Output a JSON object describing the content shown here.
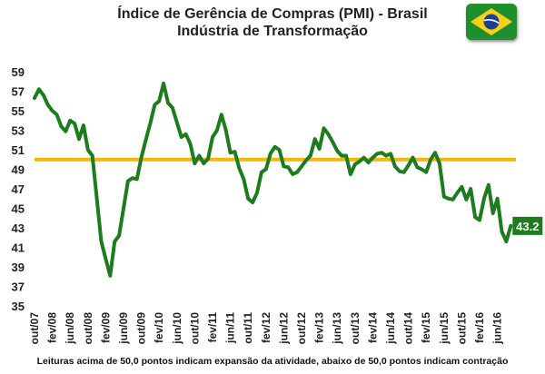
{
  "title_line1": "Índice de Gerência de Compras (PMI) - Brasil",
  "title_line2": "Indústria de Transformação",
  "footnote": "Leituras acima de 50,0 pontos indicam expansão da atividade, abaixo de 50,0 pontos indicam contração",
  "flag_icon": "brazil-flag-icon",
  "colors": {
    "line": "#1e7b1e",
    "threshold": "#f5b800",
    "label_bg": "#1e7b1e"
  },
  "chart_data": {
    "type": "line",
    "title": "Índice de Gerência de Compras (PMI) - Brasil",
    "subtitle": "Indústria de Transformação",
    "xlabel": "",
    "ylabel": "",
    "ylim": [
      35,
      59
    ],
    "yticks": [
      35,
      37,
      39,
      41,
      43,
      45,
      47,
      49,
      51,
      53,
      55,
      57,
      59
    ],
    "xtick_labels": [
      "out/07",
      "fev/08",
      "jun/08",
      "out/08",
      "fev/09",
      "jun/09",
      "out/09",
      "fev/10",
      "jun/10",
      "out/10",
      "fev/11",
      "jun/11",
      "out/11",
      "fev/12",
      "jun/12",
      "out/12",
      "fev/13",
      "jun/13",
      "out/13",
      "fev/14",
      "jun/14",
      "out/14",
      "fev/15",
      "jun/15",
      "out/15",
      "fev/16",
      "jun/16"
    ],
    "threshold": 50,
    "grid": false,
    "last_value_label": "43.2",
    "series": [
      {
        "values": [
          56.3,
          57.2,
          56.6,
          55.6,
          55.0,
          54.6,
          53.4,
          52.9,
          54.0,
          53.7,
          52.1,
          53.5,
          51.0,
          50.4,
          46.0,
          41.6,
          39.8,
          38.1,
          41.6,
          42.2,
          45.0,
          47.8,
          48.1,
          48.0,
          50.2,
          52.0,
          53.7,
          55.6,
          56.0,
          57.8,
          55.8,
          55.3,
          53.8,
          52.3,
          52.6,
          51.6,
          49.6,
          50.4,
          49.6,
          50.1,
          52.3,
          53.0,
          54.6,
          53.0,
          50.7,
          50.8,
          49.1,
          48.0,
          46.0,
          45.6,
          46.6,
          48.7,
          49.0,
          50.6,
          51.3,
          51.0,
          49.3,
          49.2,
          48.5,
          48.7,
          49.3,
          49.9,
          50.4,
          52.1,
          51.1,
          53.2,
          52.6,
          51.8,
          50.9,
          50.4,
          50.4,
          48.5,
          49.5,
          49.8,
          50.2,
          49.7,
          50.2,
          50.6,
          50.7,
          50.4,
          50.6,
          49.3,
          48.8,
          48.7,
          49.4,
          50.2,
          49.2,
          49.0,
          48.7,
          50.0,
          50.7,
          49.6,
          46.2,
          46.0,
          45.9,
          46.6,
          47.2,
          45.9,
          47.0,
          44.1,
          43.8,
          46.0,
          47.4,
          44.5,
          46.0,
          42.6,
          41.6,
          43.2
        ]
      }
    ]
  }
}
